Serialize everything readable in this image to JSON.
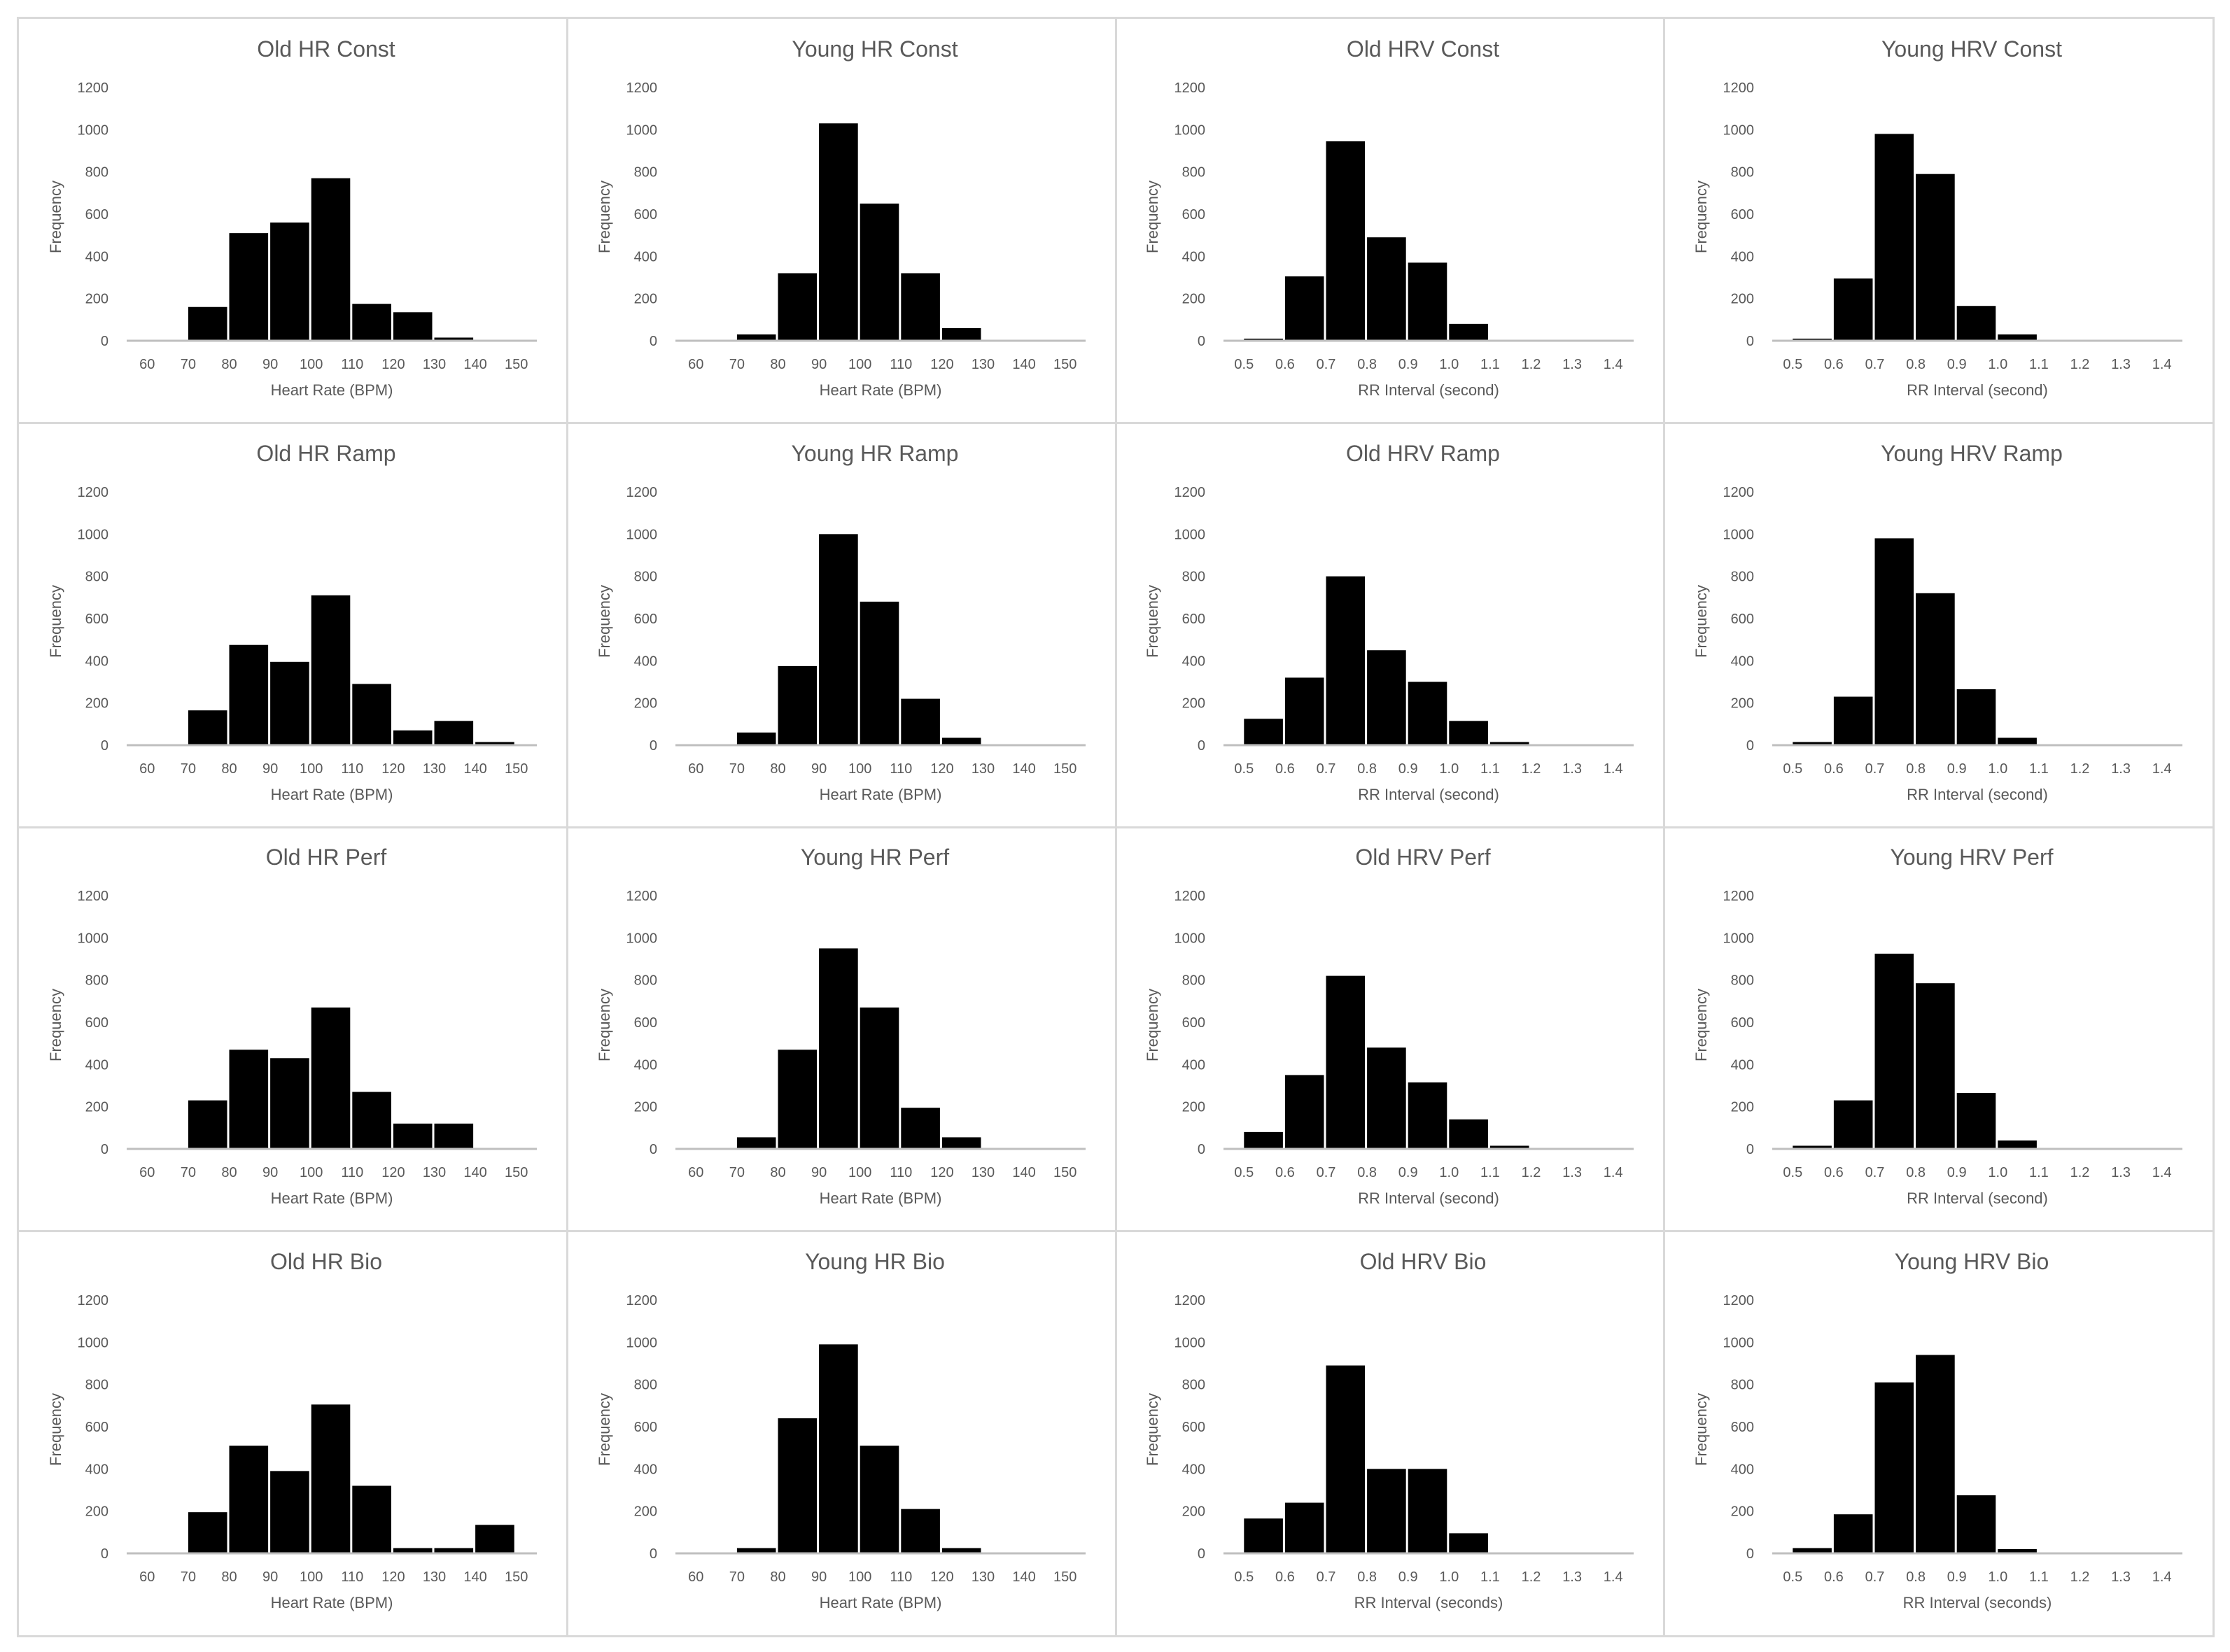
{
  "chart_data": [
    {
      "type": "bar",
      "title": "Old HR Const",
      "xlabel": "Heart Rate (BPM)",
      "ylabel": "Frequency",
      "ylim": [
        0,
        1200
      ],
      "yticks": [
        "0",
        "200",
        "400",
        "600",
        "800",
        "1000",
        "1200"
      ],
      "categories": [
        "60",
        "70",
        "80",
        "90",
        "100",
        "110",
        "120",
        "130",
        "140",
        "150"
      ],
      "values": [
        0,
        160,
        510,
        560,
        770,
        175,
        135,
        15,
        0,
        0
      ],
      "grid": false
    },
    {
      "type": "bar",
      "title": "Young HR Const",
      "xlabel": "Heart Rate (BPM)",
      "ylabel": "Frequency",
      "ylim": [
        0,
        1200
      ],
      "yticks": [
        "0",
        "200",
        "400",
        "600",
        "800",
        "1000",
        "1200"
      ],
      "categories": [
        "60",
        "70",
        "80",
        "90",
        "100",
        "110",
        "120",
        "130",
        "140",
        "150"
      ],
      "values": [
        0,
        30,
        320,
        1030,
        650,
        320,
        60,
        0,
        0,
        0
      ],
      "grid": false
    },
    {
      "type": "bar",
      "title": "Old HRV Const",
      "xlabel": "RR Interval (second)",
      "ylabel": "Frequency",
      "ylim": [
        0,
        1200
      ],
      "yticks": [
        "0",
        "200",
        "400",
        "600",
        "800",
        "1000",
        "1200"
      ],
      "categories": [
        "0.5",
        "0.6",
        "0.7",
        "0.8",
        "0.9",
        "1.0",
        "1.1",
        "1.2",
        "1.3",
        "1.4"
      ],
      "values": [
        10,
        305,
        945,
        490,
        370,
        80,
        0,
        0,
        0,
        0
      ],
      "grid": false
    },
    {
      "type": "bar",
      "title": "Young HRV Const",
      "xlabel": "RR Interval (second)",
      "ylabel": "Frequency",
      "ylim": [
        0,
        1200
      ],
      "yticks": [
        "0",
        "200",
        "400",
        "600",
        "800",
        "1000",
        "1200"
      ],
      "categories": [
        "0.5",
        "0.6",
        "0.7",
        "0.8",
        "0.9",
        "1.0",
        "1.1",
        "1.2",
        "1.3",
        "1.4"
      ],
      "values": [
        10,
        295,
        980,
        790,
        165,
        30,
        0,
        0,
        0,
        0
      ],
      "grid": false
    },
    {
      "type": "bar",
      "title": "Old HR Ramp",
      "xlabel": "Heart Rate (BPM)",
      "ylabel": "Frequency",
      "ylim": [
        0,
        1200
      ],
      "yticks": [
        "0",
        "200",
        "400",
        "600",
        "800",
        "1000",
        "1200"
      ],
      "categories": [
        "60",
        "70",
        "80",
        "90",
        "100",
        "110",
        "120",
        "130",
        "140",
        "150"
      ],
      "values": [
        0,
        165,
        475,
        395,
        710,
        290,
        70,
        115,
        15,
        0
      ],
      "grid": false
    },
    {
      "type": "bar",
      "title": "Young HR Ramp",
      "xlabel": "Heart Rate (BPM)",
      "ylabel": "Frequency",
      "ylim": [
        0,
        1200
      ],
      "yticks": [
        "0",
        "200",
        "400",
        "600",
        "800",
        "1000",
        "1200"
      ],
      "categories": [
        "60",
        "70",
        "80",
        "90",
        "100",
        "110",
        "120",
        "130",
        "140",
        "150"
      ],
      "values": [
        0,
        60,
        375,
        1000,
        680,
        220,
        35,
        0,
        0,
        0
      ],
      "grid": false
    },
    {
      "type": "bar",
      "title": "Old HRV Ramp",
      "xlabel": "RR Interval (second)",
      "ylabel": "Frequency",
      "ylim": [
        0,
        1200
      ],
      "yticks": [
        "0",
        "200",
        "400",
        "600",
        "800",
        "1000",
        "1200"
      ],
      "categories": [
        "0.5",
        "0.6",
        "0.7",
        "0.8",
        "0.9",
        "1.0",
        "1.1",
        "1.2",
        "1.3",
        "1.4"
      ],
      "values": [
        125,
        320,
        800,
        450,
        300,
        115,
        15,
        0,
        0,
        0
      ],
      "grid": false
    },
    {
      "type": "bar",
      "title": "Young HRV Ramp",
      "xlabel": "RR Interval (second)",
      "ylabel": "Frequency",
      "ylim": [
        0,
        1200
      ],
      "yticks": [
        "0",
        "200",
        "400",
        "600",
        "800",
        "1000",
        "1200"
      ],
      "categories": [
        "0.5",
        "0.6",
        "0.7",
        "0.8",
        "0.9",
        "1.0",
        "1.1",
        "1.2",
        "1.3",
        "1.4"
      ],
      "values": [
        15,
        230,
        980,
        720,
        265,
        35,
        0,
        0,
        0,
        0
      ],
      "grid": false
    },
    {
      "type": "bar",
      "title": "Old HR Perf",
      "xlabel": "Heart Rate (BPM)",
      "ylabel": "Frequency",
      "ylim": [
        0,
        1200
      ],
      "yticks": [
        "0",
        "200",
        "400",
        "600",
        "800",
        "1000",
        "1200"
      ],
      "categories": [
        "60",
        "70",
        "80",
        "90",
        "100",
        "110",
        "120",
        "130",
        "140",
        "150"
      ],
      "values": [
        0,
        230,
        470,
        430,
        670,
        270,
        120,
        120,
        0,
        0
      ],
      "grid": false
    },
    {
      "type": "bar",
      "title": "Young HR Perf",
      "xlabel": "Heart Rate (BPM)",
      "ylabel": "Frequency",
      "ylim": [
        0,
        1200
      ],
      "yticks": [
        "0",
        "200",
        "400",
        "600",
        "800",
        "1000",
        "1200"
      ],
      "categories": [
        "60",
        "70",
        "80",
        "90",
        "100",
        "110",
        "120",
        "130",
        "140",
        "150"
      ],
      "values": [
        0,
        55,
        470,
        950,
        670,
        195,
        55,
        0,
        0,
        0
      ],
      "grid": false
    },
    {
      "type": "bar",
      "title": "Old HRV Perf",
      "xlabel": "RR Interval (second)",
      "ylabel": "Frequency",
      "ylim": [
        0,
        1200
      ],
      "yticks": [
        "0",
        "200",
        "400",
        "600",
        "800",
        "1000",
        "1200"
      ],
      "categories": [
        "0.5",
        "0.6",
        "0.7",
        "0.8",
        "0.9",
        "1.0",
        "1.1",
        "1.2",
        "1.3",
        "1.4"
      ],
      "values": [
        80,
        350,
        820,
        480,
        315,
        140,
        15,
        0,
        0,
        0
      ],
      "grid": false
    },
    {
      "type": "bar",
      "title": "Young HRV Perf",
      "xlabel": "RR Interval (second)",
      "ylabel": "Frequency",
      "ylim": [
        0,
        1200
      ],
      "yticks": [
        "0",
        "200",
        "400",
        "600",
        "800",
        "1000",
        "1200"
      ],
      "categories": [
        "0.5",
        "0.6",
        "0.7",
        "0.8",
        "0.9",
        "1.0",
        "1.1",
        "1.2",
        "1.3",
        "1.4"
      ],
      "values": [
        15,
        230,
        925,
        785,
        265,
        40,
        0,
        0,
        0,
        0
      ],
      "grid": false
    },
    {
      "type": "bar",
      "title": "Old HR Bio",
      "xlabel": "Heart Rate (BPM)",
      "ylabel": "Frequency",
      "ylim": [
        0,
        1200
      ],
      "yticks": [
        "0",
        "200",
        "400",
        "600",
        "800",
        "1000",
        "1200"
      ],
      "categories": [
        "60",
        "70",
        "80",
        "90",
        "100",
        "110",
        "120",
        "130",
        "140",
        "150"
      ],
      "values": [
        0,
        195,
        510,
        390,
        705,
        320,
        25,
        25,
        135,
        0
      ],
      "grid": false
    },
    {
      "type": "bar",
      "title": "Young HR Bio",
      "xlabel": "Heart Rate (BPM)",
      "ylabel": "Frequency",
      "ylim": [
        0,
        1200
      ],
      "yticks": [
        "0",
        "200",
        "400",
        "600",
        "800",
        "1000",
        "1200"
      ],
      "categories": [
        "60",
        "70",
        "80",
        "90",
        "100",
        "110",
        "120",
        "130",
        "140",
        "150"
      ],
      "values": [
        0,
        25,
        640,
        990,
        510,
        210,
        25,
        0,
        0,
        0
      ],
      "grid": false
    },
    {
      "type": "bar",
      "title": "Old HRV Bio",
      "xlabel": "RR Interval (seconds)",
      "ylabel": "Frequency",
      "ylim": [
        0,
        1200
      ],
      "yticks": [
        "0",
        "200",
        "400",
        "600",
        "800",
        "1000",
        "1200"
      ],
      "categories": [
        "0.5",
        "0.6",
        "0.7",
        "0.8",
        "0.9",
        "1.0",
        "1.1",
        "1.2",
        "1.3",
        "1.4"
      ],
      "values": [
        165,
        240,
        890,
        400,
        400,
        95,
        0,
        0,
        0,
        0
      ],
      "grid": false
    },
    {
      "type": "bar",
      "title": "Young HRV Bio",
      "xlabel": "RR Interval (seconds)",
      "ylabel": "Frequency",
      "ylim": [
        0,
        1200
      ],
      "yticks": [
        "0",
        "200",
        "400",
        "600",
        "800",
        "1000",
        "1200"
      ],
      "categories": [
        "0.5",
        "0.6",
        "0.7",
        "0.8",
        "0.9",
        "1.0",
        "1.1",
        "1.2",
        "1.3",
        "1.4"
      ],
      "values": [
        25,
        185,
        810,
        940,
        275,
        20,
        0,
        0,
        0,
        0
      ],
      "grid": false
    }
  ]
}
